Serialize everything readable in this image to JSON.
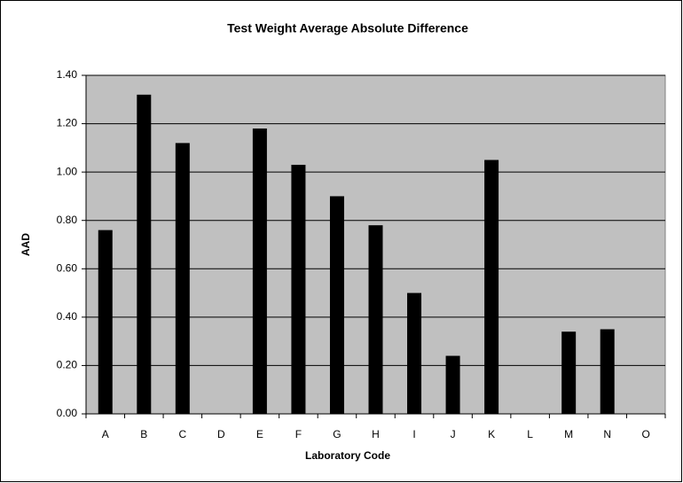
{
  "chart_data": {
    "type": "bar",
    "title": "Test Weight Average Absolute Difference",
    "x_label": "Laboratory Code",
    "y_label": "AAD",
    "categories": [
      "A",
      "B",
      "C",
      "D",
      "E",
      "F",
      "G",
      "H",
      "I",
      "J",
      "K",
      "L",
      "M",
      "N",
      "O"
    ],
    "values": [
      0.76,
      1.32,
      1.12,
      null,
      1.18,
      1.03,
      0.9,
      0.78,
      0.5,
      0.24,
      1.05,
      null,
      0.34,
      0.35,
      null
    ],
    "color": "#000000",
    "plot_background": "#c0c0c0",
    "ylim": [
      0,
      1.4
    ],
    "yticks": [
      {
        "value": 0,
        "label": "0.00"
      },
      {
        "value": 0.2,
        "label": "0.20"
      },
      {
        "value": 0.4,
        "label": "0.40"
      },
      {
        "value": 0.6,
        "label": "0.60"
      },
      {
        "value": 0.8,
        "label": "0.80"
      },
      {
        "value": 1.0,
        "label": "1.00"
      },
      {
        "value": 1.2,
        "label": "1.20"
      },
      {
        "value": 1.4,
        "label": "1.40"
      }
    ],
    "grid": true
  }
}
